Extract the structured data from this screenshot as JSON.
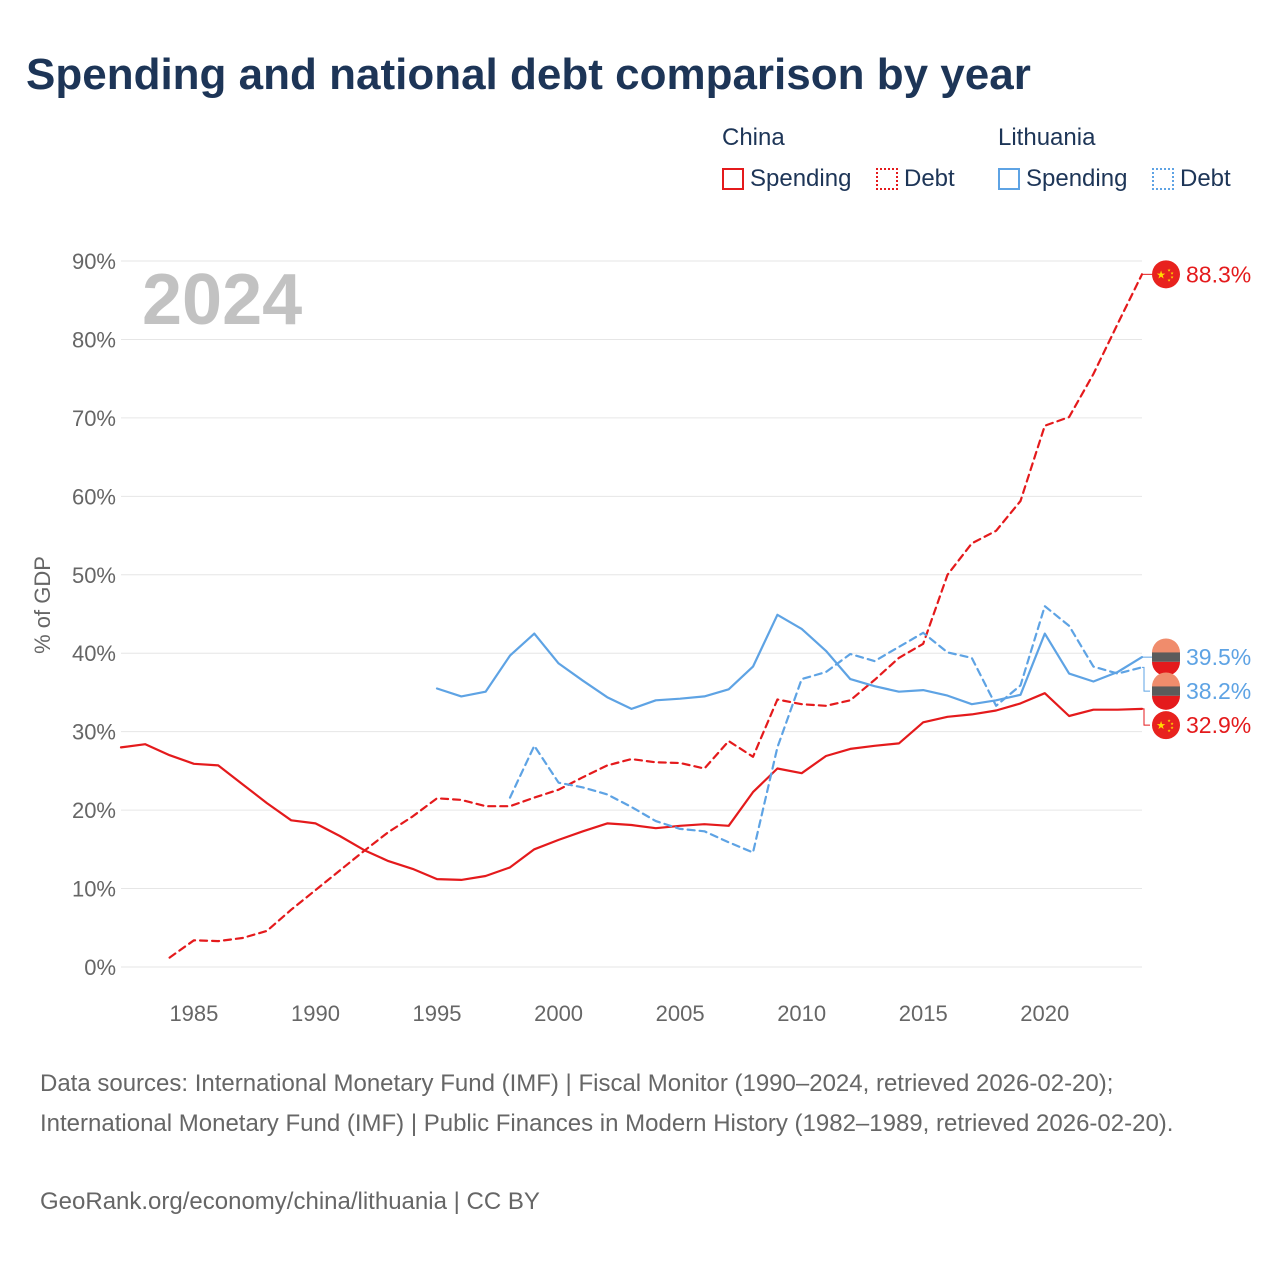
{
  "title": "Spending and national debt comparison by year",
  "legend": {
    "groups": [
      {
        "name": "China",
        "spending_label": "Spending",
        "debt_label": "Debt",
        "color": "#e41a1c"
      },
      {
        "name": "Lithuania",
        "spending_label": "Spending",
        "debt_label": "Debt",
        "color": "#5ea3e4"
      }
    ]
  },
  "chart_data": {
    "type": "line",
    "ylabel": "% of GDP",
    "ylim": [
      0,
      90
    ],
    "yticks": [
      "0%",
      "10%",
      "20%",
      "30%",
      "40%",
      "50%",
      "60%",
      "70%",
      "80%",
      "90%"
    ],
    "xlim": [
      1982,
      2024
    ],
    "xticks": [
      1985,
      1990,
      1995,
      2000,
      2005,
      2010,
      2015,
      2020
    ],
    "year_label": "2024",
    "series": [
      {
        "name": "China Spending",
        "country": "China",
        "measure": "Spending",
        "dashed": false,
        "color": "#e41a1c",
        "x": [
          1982,
          1983,
          1984,
          1985,
          1986,
          1987,
          1988,
          1989,
          1990,
          1991,
          1992,
          1993,
          1994,
          1995,
          1996,
          1997,
          1998,
          1999,
          2000,
          2001,
          2002,
          2003,
          2004,
          2005,
          2006,
          2007,
          2008,
          2009,
          2010,
          2011,
          2012,
          2013,
          2014,
          2015,
          2016,
          2017,
          2018,
          2019,
          2020,
          2021,
          2022,
          2023,
          2024
        ],
        "y": [
          28.0,
          28.4,
          27.0,
          25.9,
          25.7,
          23.3,
          20.9,
          18.7,
          18.3,
          16.7,
          14.9,
          13.5,
          12.5,
          11.2,
          11.1,
          11.6,
          12.7,
          15.0,
          16.2,
          17.3,
          18.3,
          18.1,
          17.7,
          18.0,
          18.2,
          18.0,
          22.3,
          25.3,
          24.7,
          26.9,
          27.8,
          28.2,
          28.5,
          31.2,
          31.9,
          32.2,
          32.7,
          33.6,
          34.9,
          32.0,
          32.8,
          32.8,
          32.9
        ]
      },
      {
        "name": "China Debt",
        "country": "China",
        "measure": "Debt",
        "dashed": true,
        "color": "#e41a1c",
        "x": [
          1984,
          1985,
          1986,
          1987,
          1988,
          1989,
          1990,
          1991,
          1992,
          1993,
          1994,
          1995,
          1996,
          1997,
          1998,
          1999,
          2000,
          2001,
          2002,
          2003,
          2004,
          2005,
          2006,
          2007,
          2008,
          2009,
          2010,
          2011,
          2012,
          2013,
          2014,
          2015,
          2016,
          2017,
          2018,
          2019,
          2020,
          2021,
          2022,
          2023,
          2024
        ],
        "y": [
          1.2,
          3.4,
          3.3,
          3.7,
          4.6,
          7.3,
          9.8,
          12.3,
          14.8,
          17.2,
          19.2,
          21.5,
          21.3,
          20.5,
          20.5,
          21.6,
          22.6,
          24.2,
          25.7,
          26.5,
          26.1,
          26.0,
          25.3,
          28.8,
          26.8,
          34.1,
          33.5,
          33.3,
          34.0,
          36.6,
          39.4,
          41.2,
          50.0,
          54.0,
          55.6,
          59.4,
          69.0,
          70.1,
          75.6,
          82.0,
          88.3
        ]
      },
      {
        "name": "Lithuania Spending",
        "country": "Lithuania",
        "measure": "Spending",
        "dashed": false,
        "color": "#5ea3e4",
        "x": [
          1995,
          1996,
          1997,
          1998,
          1999,
          2000,
          2001,
          2002,
          2003,
          2004,
          2005,
          2006,
          2007,
          2008,
          2009,
          2010,
          2011,
          2012,
          2013,
          2014,
          2015,
          2016,
          2017,
          2018,
          2019,
          2020,
          2021,
          2022,
          2023,
          2024
        ],
        "y": [
          35.5,
          34.5,
          35.1,
          39.7,
          42.5,
          38.7,
          36.5,
          34.4,
          32.9,
          34.0,
          34.2,
          34.5,
          35.4,
          38.3,
          44.9,
          43.1,
          40.3,
          36.7,
          35.8,
          35.1,
          35.3,
          34.6,
          33.5,
          34.0,
          34.7,
          42.5,
          37.4,
          36.4,
          37.6,
          39.5
        ]
      },
      {
        "name": "Lithuania Debt",
        "country": "Lithuania",
        "measure": "Debt",
        "dashed": true,
        "color": "#5ea3e4",
        "x": [
          1998,
          1999,
          2000,
          2001,
          2002,
          2003,
          2004,
          2005,
          2006,
          2007,
          2008,
          2009,
          2010,
          2011,
          2012,
          2013,
          2014,
          2015,
          2016,
          2017,
          2018,
          2019,
          2020,
          2021,
          2022,
          2023,
          2024
        ],
        "y": [
          21.6,
          28.2,
          23.5,
          22.9,
          22.0,
          20.4,
          18.6,
          17.6,
          17.3,
          15.9,
          14.6,
          28.0,
          36.7,
          37.6,
          39.9,
          39.0,
          40.8,
          42.6,
          40.1,
          39.4,
          33.3,
          35.9,
          46.0,
          43.5,
          38.3,
          37.4,
          38.2
        ]
      }
    ],
    "end_labels": [
      {
        "text": "88.3%",
        "value": 88.3,
        "color": "#e41a1c",
        "flag": "china-flag-icon"
      },
      {
        "text": "39.5%",
        "value": 39.5,
        "color": "#5ea3e4",
        "flag": "lithuania-flag-icon"
      },
      {
        "text": "38.2%",
        "value": 38.2,
        "color": "#5ea3e4",
        "flag": "lithuania-flag-icon"
      },
      {
        "text": "32.9%",
        "value": 32.9,
        "color": "#e41a1c",
        "flag": "china-flag-icon"
      }
    ]
  },
  "footer": {
    "sources": "Data sources: International Monetary Fund (IMF) | Fiscal Monitor (1990–2024, retrieved 2026-02-20); International Monetary Fund (IMF) | Public Finances in Modern History (1982–1989, retrieved 2026-02-20).",
    "attribution": "GeoRank.org/economy/china/lithuania | CC BY"
  }
}
